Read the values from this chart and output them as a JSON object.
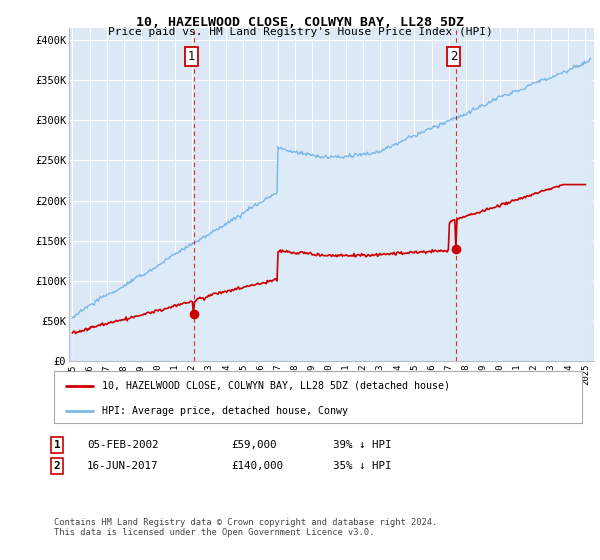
{
  "title": "10, HAZELWOOD CLOSE, COLWYN BAY, LL28 5DZ",
  "subtitle": "Price paid vs. HM Land Registry's House Price Index (HPI)",
  "ylabel_ticks": [
    "£0",
    "£50K",
    "£100K",
    "£150K",
    "£200K",
    "£250K",
    "£300K",
    "£350K",
    "£400K"
  ],
  "ytick_values": [
    0,
    50000,
    100000,
    150000,
    200000,
    250000,
    300000,
    350000,
    400000
  ],
  "ylim": [
    0,
    415000
  ],
  "xlim_start": 1994.8,
  "xlim_end": 2025.5,
  "hpi_color": "#7ab8e8",
  "hpi_fill_color": "#ddeaf7",
  "price_color": "#cc0000",
  "marker1_year": 2002.1,
  "marker1_price": 59000,
  "marker2_year": 2017.45,
  "marker2_price": 140000,
  "legend_label_price": "10, HAZELWOOD CLOSE, COLWYN BAY, LL28 5DZ (detached house)",
  "legend_label_hpi": "HPI: Average price, detached house, Conwy",
  "footer": "Contains HM Land Registry data © Crown copyright and database right 2024.\nThis data is licensed under the Open Government Licence v3.0.",
  "background_color": "#dce8f5"
}
